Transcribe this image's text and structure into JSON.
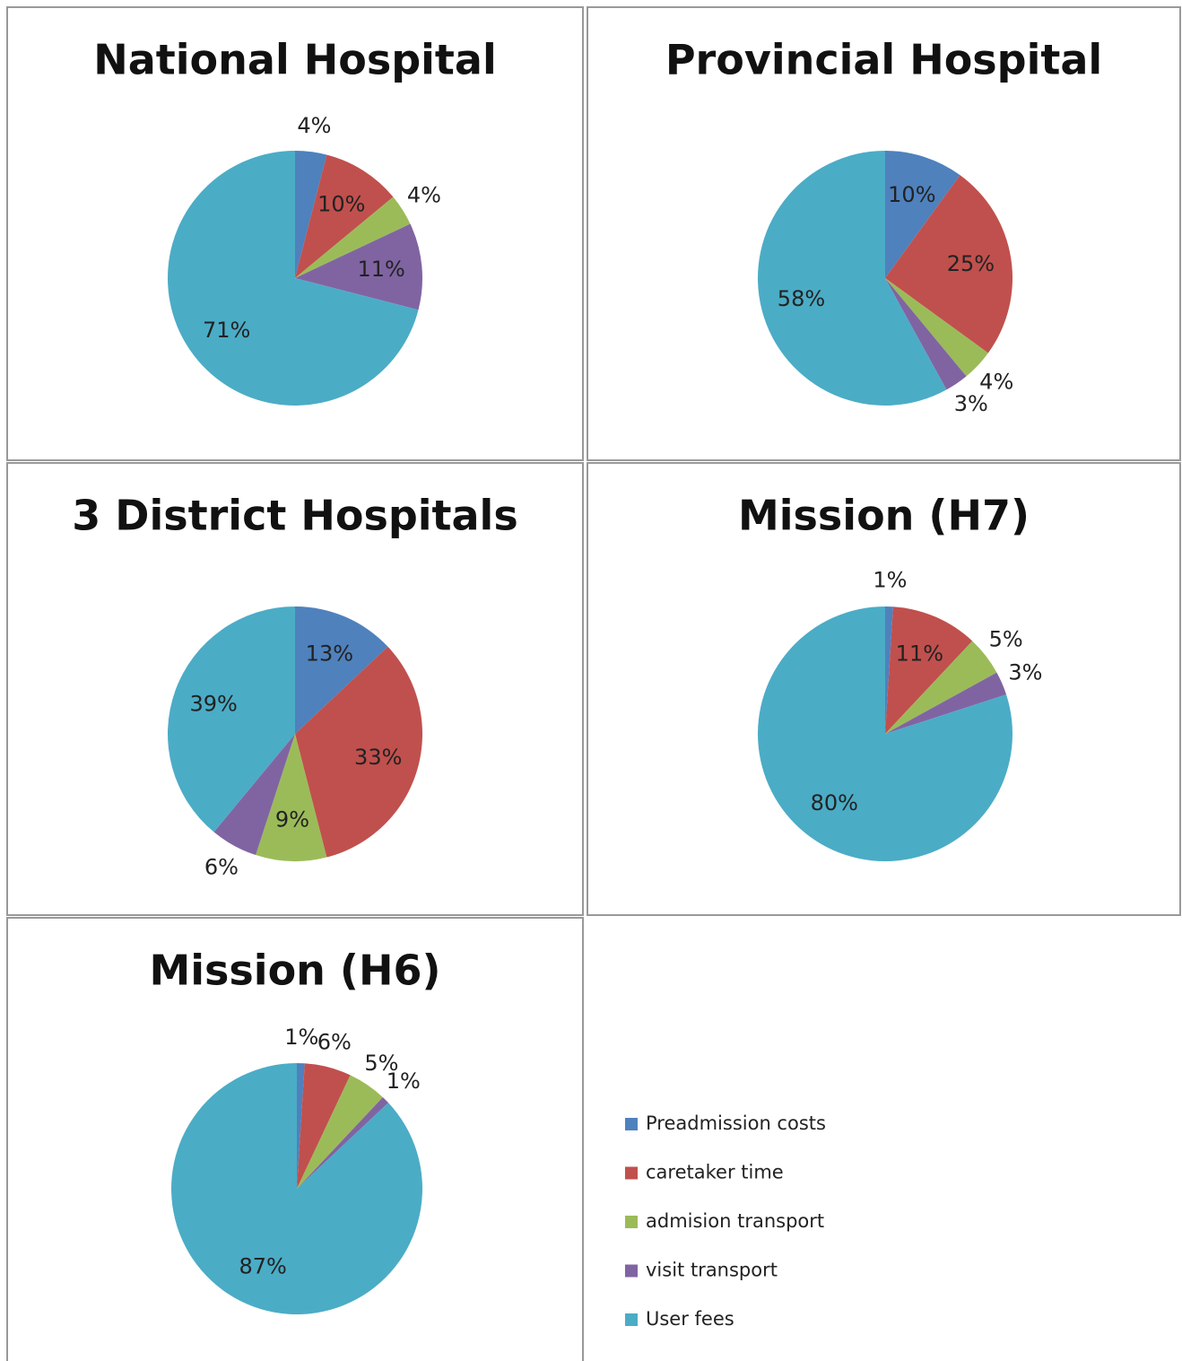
{
  "chart_data": [
    {
      "type": "pie",
      "title": "National Hospital",
      "categories": [
        "Preadmission costs",
        "caretaker time",
        "admision transport",
        "visit transport",
        "User fees"
      ],
      "colors": [
        "#4f81bd",
        "#c0504d",
        "#9bbb59",
        "#8064a2",
        "#4bacc6"
      ],
      "values": [
        4,
        10,
        4,
        11,
        71
      ],
      "value_labels": [
        "4%",
        "10%",
        "4%",
        "11%",
        "71%"
      ]
    },
    {
      "type": "pie",
      "title": "Provincial Hospital",
      "categories": [
        "Preadmission costs",
        "caretaker time",
        "admision transport",
        "visit transport",
        "User fees"
      ],
      "colors": [
        "#4f81bd",
        "#c0504d",
        "#9bbb59",
        "#8064a2",
        "#4bacc6"
      ],
      "values": [
        10,
        25,
        4,
        3,
        58
      ],
      "value_labels": [
        "10%",
        "25%",
        "4%",
        "3%",
        "58%"
      ]
    },
    {
      "type": "pie",
      "title": "3 District Hospitals",
      "categories": [
        "Preadmission costs",
        "caretaker time",
        "admision transport",
        "visit transport",
        "User fees"
      ],
      "colors": [
        "#4f81bd",
        "#c0504d",
        "#9bbb59",
        "#8064a2",
        "#4bacc6"
      ],
      "values": [
        13,
        33,
        9,
        6,
        39
      ],
      "value_labels": [
        "13%",
        "33%",
        "9%",
        "6%",
        "39%"
      ]
    },
    {
      "type": "pie",
      "title": "Mission (H7)",
      "categories": [
        "Preadmission costs",
        "caretaker time",
        "admision transport",
        "visit transport",
        "User fees"
      ],
      "colors": [
        "#4f81bd",
        "#c0504d",
        "#9bbb59",
        "#8064a2",
        "#4bacc6"
      ],
      "values": [
        1,
        11,
        5,
        3,
        80
      ],
      "value_labels": [
        "1%",
        "11%",
        "5%",
        "3%",
        "80%"
      ]
    },
    {
      "type": "pie",
      "title": "Mission (H6)",
      "categories": [
        "Preadmission costs",
        "caretaker time",
        "admision transport",
        "visit transport",
        "User fees"
      ],
      "colors": [
        "#4f81bd",
        "#c0504d",
        "#9bbb59",
        "#8064a2",
        "#4bacc6"
      ],
      "values": [
        1,
        6,
        5,
        1,
        87
      ],
      "value_labels": [
        "1%",
        "6%",
        "5%",
        "1%",
        "87%"
      ]
    }
  ]
}
